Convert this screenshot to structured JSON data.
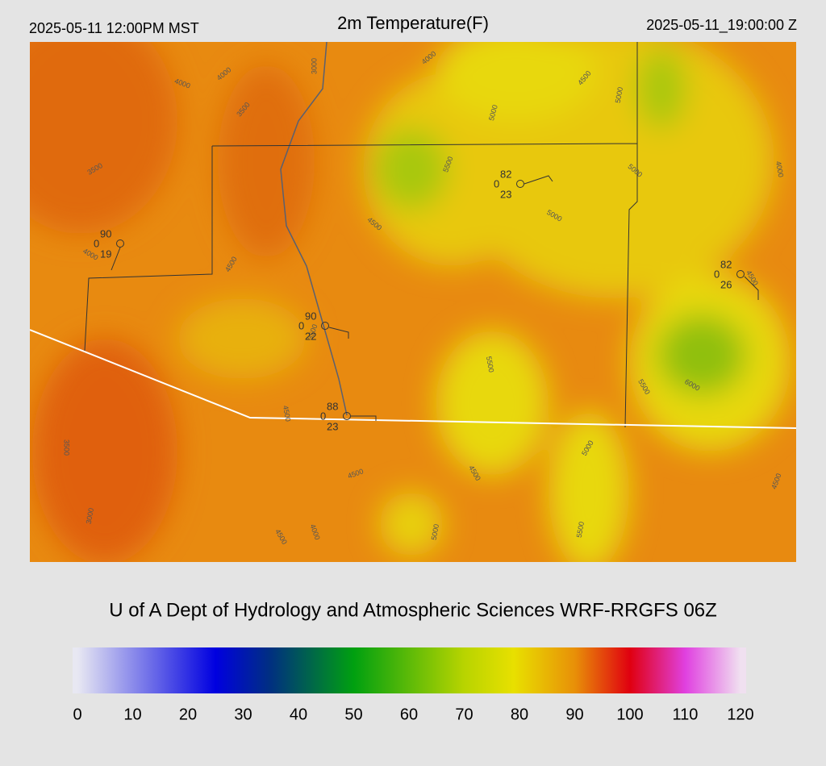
{
  "header": {
    "local_time": "2025-05-11 12:00PM MST",
    "title": "2m Temperature(F)",
    "utc_time": "2025-05-11_19:00:00 Z"
  },
  "contour_labels": [
    4000,
    4000,
    3000,
    3500,
    3500,
    4000,
    4500,
    5000,
    5000,
    5500,
    5000,
    4000,
    4500,
    5000,
    4500,
    4000,
    4500,
    3500,
    5500,
    5500,
    6000,
    4500,
    3500,
    5000,
    4500,
    4500,
    4500,
    3000,
    4000,
    4500,
    5000,
    5500
  ],
  "stations": [
    {
      "temperature": 90,
      "wind": 0,
      "dewpoint": 19
    },
    {
      "temperature": 82,
      "wind": 0,
      "dewpoint": 23
    },
    {
      "temperature": 90,
      "wind": 0,
      "dewpoint": 22
    },
    {
      "temperature": 88,
      "wind": 0,
      "dewpoint": 23
    },
    {
      "temperature": 82,
      "wind": 0,
      "dewpoint": 26
    }
  ],
  "footer": "U of A Dept of Hydrology and Atmospheric Sciences WRF-RRGFS 06Z",
  "colorbar": {
    "range": [
      0,
      120
    ],
    "ticks": [
      0,
      10,
      20,
      30,
      40,
      50,
      60,
      70,
      80,
      90,
      100,
      110,
      120
    ],
    "stops": [
      {
        "value": 0,
        "color": "#e8e8f2"
      },
      {
        "value": 25,
        "color": "#0000e0"
      },
      {
        "value": 35,
        "color": "#003080"
      },
      {
        "value": 50,
        "color": "#00a010"
      },
      {
        "value": 70,
        "color": "#b8d400"
      },
      {
        "value": 79,
        "color": "#e8e000"
      },
      {
        "value": 90,
        "color": "#e89008"
      },
      {
        "value": 100,
        "color": "#e00010"
      },
      {
        "value": 110,
        "color": "#e040e0"
      },
      {
        "value": 120,
        "color": "#f0e0f0"
      }
    ]
  }
}
